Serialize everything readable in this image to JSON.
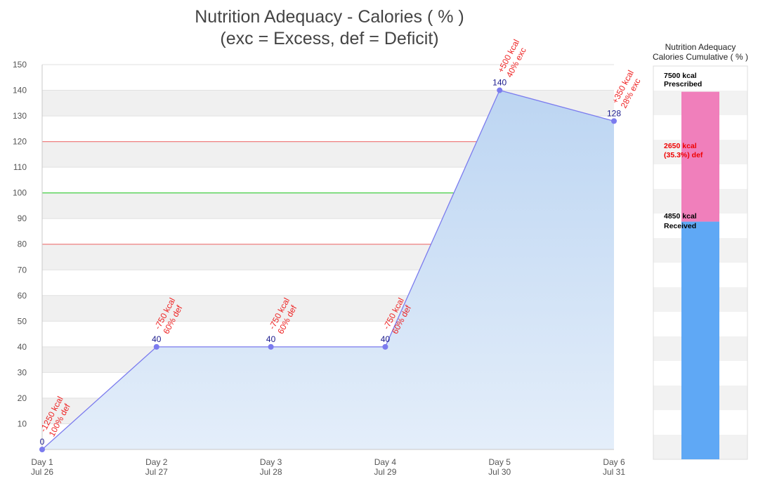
{
  "chart_data": [
    {
      "type": "area",
      "title": "Nutrition Adequacy - Calories ( % )",
      "subtitle": "(exc = Excess, def = Deficit)",
      "xlabel": "",
      "ylabel": "",
      "ylim": [
        0,
        150
      ],
      "y_ticks": [
        10,
        20,
        30,
        40,
        50,
        60,
        70,
        80,
        90,
        100,
        110,
        120,
        130,
        140,
        150
      ],
      "categories": [
        "Day 1",
        "Day 2",
        "Day 3",
        "Day 4",
        "Day 5",
        "Day 6"
      ],
      "category_dates": [
        "Jul 26",
        "Jul 27",
        "Jul 28",
        "Jul 29",
        "Jul 30",
        "Jul 31"
      ],
      "series": [
        {
          "values": [
            0,
            40,
            40,
            40,
            140,
            128
          ]
        }
      ],
      "value_labels": [
        "0",
        "40",
        "40",
        "40",
        "140",
        "128"
      ],
      "annotations": [
        {
          "kcal": "-1250 kcal",
          "pct": "100% def"
        },
        {
          "kcal": "-750 kcal",
          "pct": "60% def"
        },
        {
          "kcal": "-750 kcal",
          "pct": "60% def"
        },
        {
          "kcal": "-750 kcal",
          "pct": "60% def"
        },
        {
          "kcal": "+500 kcal",
          "pct": "40% exc"
        },
        {
          "kcal": "+350 kcal",
          "pct": "28% exc"
        }
      ],
      "reference_lines": [
        {
          "value": 120,
          "color": "#f08080"
        },
        {
          "value": 100,
          "color": "#33cc33"
        },
        {
          "value": 80,
          "color": "#f08080"
        }
      ],
      "colors": {
        "line": "#7b7bee",
        "marker": "#7b7bee",
        "fill_top": "#bcd5f2",
        "fill_bottom": "#e4eefa",
        "value_label": "#1a1a8c",
        "annotation": "#ee2222",
        "band": "#f0f0f0"
      },
      "grid": true,
      "legend": "none"
    },
    {
      "type": "bar",
      "title_line1": "Nutrition Adequacy",
      "title_line2": "Calories Cumulative ( % )",
      "stacked": true,
      "prescribed_kcal": 7500,
      "received_kcal": 4850,
      "deficit_kcal": 2650,
      "labels": {
        "prescribed_line1": "7500 kcal",
        "prescribed_line2": "Prescribed",
        "deficit_line1": "2650 kcal",
        "deficit_line2": "(35.3%) def",
        "received_line1": "4850 kcal",
        "received_line2": "Received"
      },
      "colors": {
        "received": "#5fa8f5",
        "deficit": "#f07fbb",
        "deficit_text": "#ee0000",
        "text": "#000000"
      }
    }
  ]
}
